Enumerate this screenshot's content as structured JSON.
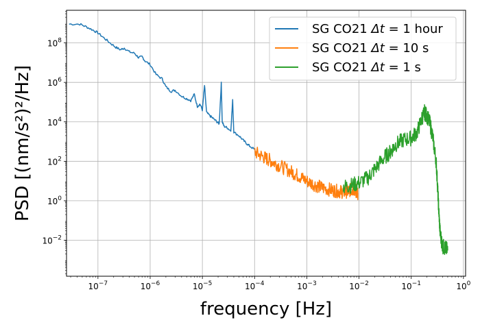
{
  "chart_data": {
    "type": "line",
    "title": "",
    "xlabel": "frequency [Hz]",
    "ylabel": "PSD [(nm/s²)²/Hz]",
    "xscale": "log",
    "yscale": "log",
    "xlim": [
      2.5e-08,
      1.1
    ],
    "ylim": [
      0.00015,
      4500000000.0
    ],
    "grid": true,
    "legend_position": "top-right",
    "x_ticks": [
      {
        "value": 1e-07,
        "base": "10",
        "exp": "−7"
      },
      {
        "value": 1e-06,
        "base": "10",
        "exp": "−6"
      },
      {
        "value": 1e-05,
        "base": "10",
        "exp": "−5"
      },
      {
        "value": 0.0001,
        "base": "10",
        "exp": "−4"
      },
      {
        "value": 0.001,
        "base": "10",
        "exp": "−3"
      },
      {
        "value": 0.01,
        "base": "10",
        "exp": "−2"
      },
      {
        "value": 0.1,
        "base": "10",
        "exp": "−1"
      },
      {
        "value": 1,
        "base": "10",
        "exp": "0"
      }
    ],
    "y_ticks": [
      {
        "value": 0.01,
        "base": "10",
        "exp": "−2"
      },
      {
        "value": 1.0,
        "base": "10",
        "exp": "0"
      },
      {
        "value": 100.0,
        "base": "10",
        "exp": "2"
      },
      {
        "value": 10000.0,
        "base": "10",
        "exp": "4"
      },
      {
        "value": 1000000.0,
        "base": "10",
        "exp": "6"
      },
      {
        "value": 100000000.0,
        "base": "10",
        "exp": "8"
      }
    ],
    "series": [
      {
        "name": "SG CO21 Δt = 1 hour",
        "legend_prefix": "SG CO21 ",
        "legend_math": "Δt",
        "legend_suffix": " = 1 hour",
        "color": "#1f77b4",
        "points": [
          [
            2.8e-08,
            900000000.0
          ],
          [
            4.5e-08,
            900000000.0
          ],
          [
            6e-08,
            650000000.0
          ],
          [
            8e-08,
            450000000.0
          ],
          [
            1e-07,
            320000000.0
          ],
          [
            1.3e-07,
            180000000.0
          ],
          [
            1.7e-07,
            100000000.0
          ],
          [
            2.2e-07,
            60000000.0
          ],
          [
            2.7e-07,
            45000000.0
          ],
          [
            3.2e-07,
            55000000.0
          ],
          [
            4e-07,
            35000000.0
          ],
          [
            5e-07,
            30000000.0
          ],
          [
            6e-07,
            18000000.0
          ],
          [
            7e-07,
            20000000.0
          ],
          [
            8e-07,
            12000000.0
          ],
          [
            1e-06,
            8000000.0
          ],
          [
            1.3e-06,
            2500000.0
          ],
          [
            1.7e-06,
            1500000.0
          ],
          [
            2e-06,
            600000.0
          ],
          [
            2.5e-06,
            350000.0
          ],
          [
            3e-06,
            400000.0
          ],
          [
            4e-06,
            200000.0
          ],
          [
            5e-06,
            150000.0
          ],
          [
            6e-06,
            120000.0
          ],
          [
            7e-06,
            250000.0
          ],
          [
            8e-06,
            60000.0
          ],
          [
            9e-06,
            80000.0
          ],
          [
            1e-05,
            40000.0
          ],
          [
            1.1e-05,
            700000.0
          ],
          [
            1.2e-05,
            30000.0
          ],
          [
            1.4e-05,
            20000.0
          ],
          [
            1.6e-05,
            15000.0
          ],
          [
            1.9e-05,
            10000.0
          ],
          [
            2.1e-05,
            8000.0
          ],
          [
            2.3e-05,
            900000.0
          ],
          [
            2.4e-05,
            10000.0
          ],
          [
            2.6e-05,
            6000.0
          ],
          [
            3e-05,
            5000.0
          ],
          [
            3.5e-05,
            3500.0
          ],
          [
            3.8e-05,
            120000.0
          ],
          [
            4e-05,
            3000.0
          ],
          [
            5e-05,
            2000.0
          ],
          [
            6e-05,
            1200.0
          ],
          [
            7e-05,
            800.0
          ],
          [
            8e-05,
            600.0
          ],
          [
            0.0001,
            400.0
          ]
        ]
      },
      {
        "name": "SG CO21 Δt = 10 s",
        "legend_prefix": "SG CO21 ",
        "legend_math": "Δt",
        "legend_suffix": " = 10 s",
        "color": "#ff7f0e",
        "points": [
          [
            0.0001,
            300
          ],
          [
            0.00015,
            160
          ],
          [
            0.0002,
            110
          ],
          [
            0.0003,
            60
          ],
          [
            0.0005,
            30
          ],
          [
            0.0007,
            18
          ],
          [
            0.001,
            10
          ],
          [
            0.0015,
            6
          ],
          [
            0.002,
            4.5
          ],
          [
            0.003,
            3.5
          ],
          [
            0.004,
            3
          ],
          [
            0.005,
            2.8
          ],
          [
            0.006,
            3
          ],
          [
            0.007,
            3.5
          ],
          [
            0.008,
            4
          ],
          [
            0.0085,
            3.5
          ],
          [
            0.009,
            3
          ],
          [
            0.0095,
            2.5
          ]
        ]
      },
      {
        "name": "SG CO21 Δt = 1 s",
        "legend_prefix": "SG CO21 ",
        "legend_math": "Δt",
        "legend_suffix": " = 1 s",
        "color": "#2ca02c",
        "points": [
          [
            0.005,
            5
          ],
          [
            0.007,
            6
          ],
          [
            0.01,
            8
          ],
          [
            0.015,
            15
          ],
          [
            0.02,
            40
          ],
          [
            0.03,
            150
          ],
          [
            0.04,
            300
          ],
          [
            0.05,
            700
          ],
          [
            0.07,
            1200
          ],
          [
            0.1,
            1500
          ],
          [
            0.13,
            3000
          ],
          [
            0.16,
            15000
          ],
          [
            0.18,
            30000
          ],
          [
            0.2,
            20000
          ],
          [
            0.23,
            8000
          ],
          [
            0.26,
            1500
          ],
          [
            0.3,
            100
          ],
          [
            0.32,
            5
          ],
          [
            0.34,
            0.2
          ],
          [
            0.36,
            0.02
          ],
          [
            0.4,
            0.005
          ],
          [
            0.45,
            0.004
          ],
          [
            0.5,
            0.003
          ]
        ]
      }
    ]
  }
}
